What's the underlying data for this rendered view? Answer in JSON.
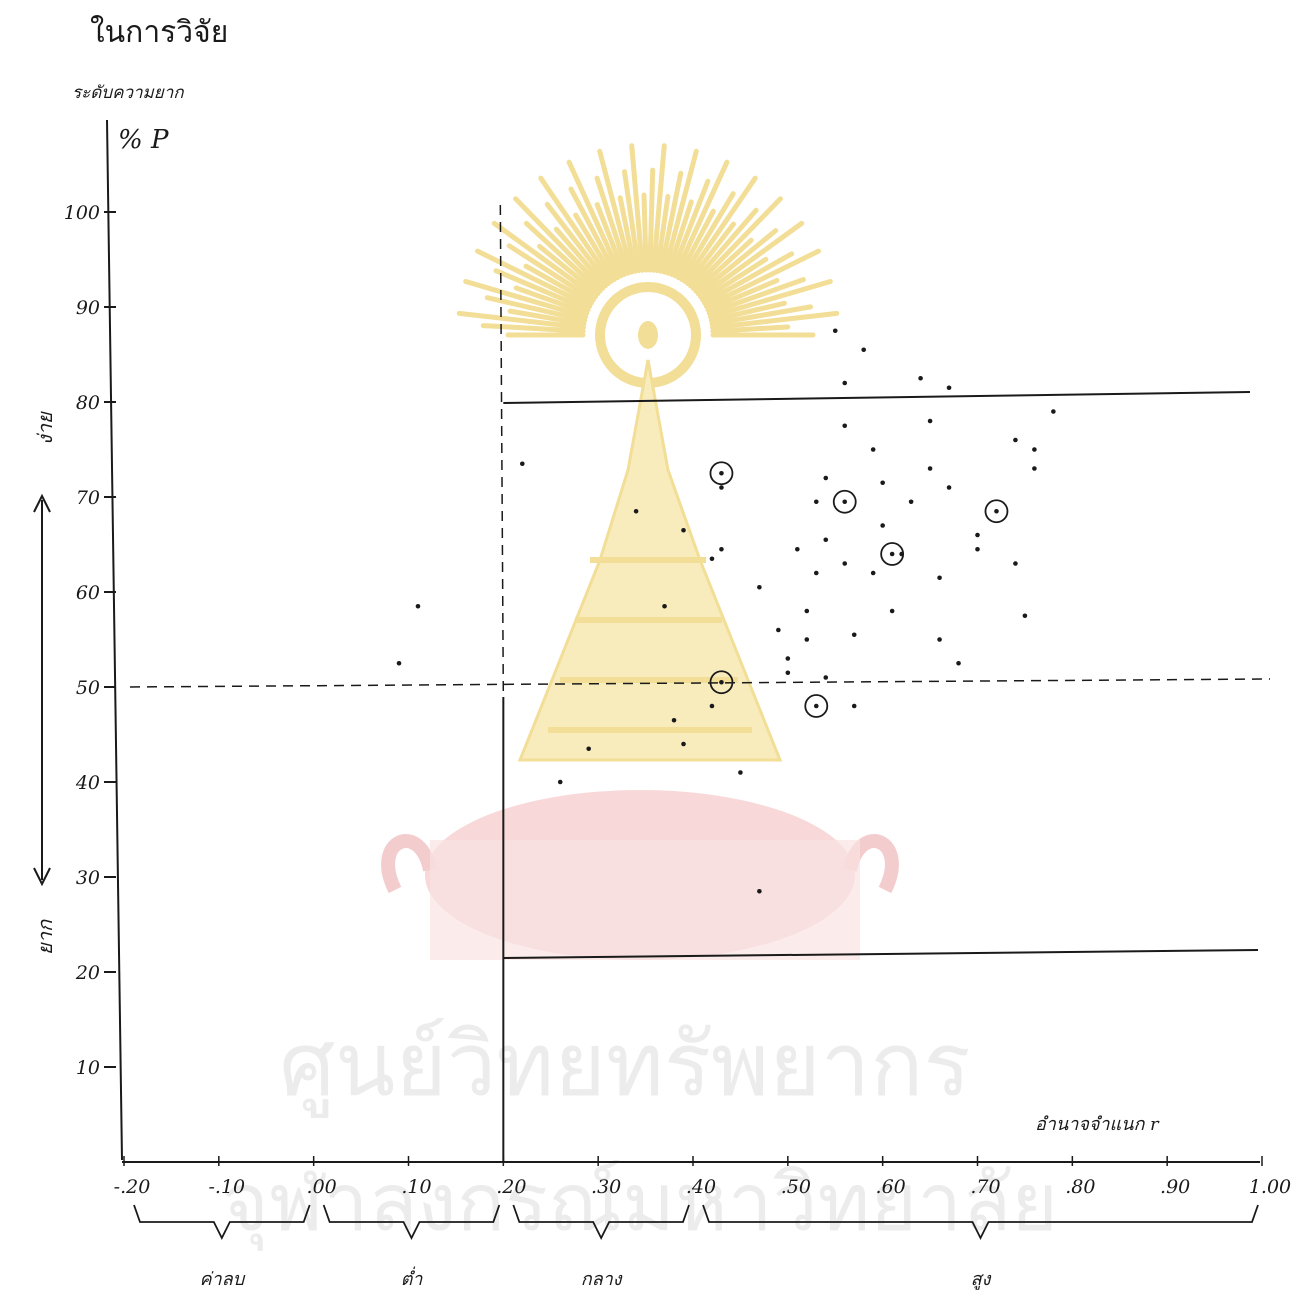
{
  "colors": {
    "ink": "#1a1a1a",
    "paper": "#ffffff",
    "watermark_gold": "#e8c340",
    "watermark_red": "#e9a5a5"
  },
  "chart_data": {
    "type": "scatter",
    "title": "ในการวิจัย",
    "ylabel_line1": "ระดับความยาก",
    "ylabel_line2": "% P",
    "xlabel": "อำนาจจำแนก r",
    "y_easy_label": "ง่าย",
    "y_hard_label": "ยาก",
    "x_ticks": [
      {
        "v": -0.2,
        "t": "-.20"
      },
      {
        "v": -0.1,
        "t": "-.10"
      },
      {
        "v": 0.0,
        "t": ".00"
      },
      {
        "v": 0.1,
        "t": ".10"
      },
      {
        "v": 0.2,
        "t": ".20"
      },
      {
        "v": 0.3,
        "t": ".30"
      },
      {
        "v": 0.4,
        "t": ".40"
      },
      {
        "v": 0.5,
        "t": ".50"
      },
      {
        "v": 0.6,
        "t": ".60"
      },
      {
        "v": 0.7,
        "t": ".70"
      },
      {
        "v": 0.8,
        "t": ".80"
      },
      {
        "v": 0.9,
        "t": ".90"
      },
      {
        "v": 1.0,
        "t": "1.00"
      }
    ],
    "y_ticks": [
      {
        "v": 100,
        "t": "100"
      },
      {
        "v": 90,
        "t": "90"
      },
      {
        "v": 80,
        "t": "80"
      },
      {
        "v": 70,
        "t": "70"
      },
      {
        "v": 60,
        "t": "60"
      },
      {
        "v": 50,
        "t": "50"
      },
      {
        "v": 40,
        "t": "40"
      },
      {
        "v": 30,
        "t": "30"
      },
      {
        "v": 20,
        "t": "20"
      },
      {
        "v": 10,
        "t": "10"
      }
    ],
    "xlim": [
      -0.2,
      1.0
    ],
    "ylim": [
      0,
      100
    ],
    "ref_lines": {
      "vertical_dashed_x": 0.2,
      "horizontal_dashed_y": 50,
      "upper_bound_y": 80,
      "lower_bound_y": 20
    },
    "groups": [
      {
        "label": "ค่าลบ",
        "from": -0.2,
        "to": 0.0
      },
      {
        "label": "ต่ำ",
        "from": 0.0,
        "to": 0.2
      },
      {
        "label": "กลาง",
        "from": 0.2,
        "to": 0.4
      },
      {
        "label": "สูง",
        "from": 0.4,
        "to": 1.0
      }
    ],
    "points": [
      {
        "x": 0.09,
        "y": 52.5
      },
      {
        "x": 0.11,
        "y": 58.5
      },
      {
        "x": 0.22,
        "y": 73.5
      },
      {
        "x": 0.26,
        "y": 40.0
      },
      {
        "x": 0.29,
        "y": 43.5
      },
      {
        "x": 0.34,
        "y": 68.5
      },
      {
        "x": 0.37,
        "y": 58.5
      },
      {
        "x": 0.38,
        "y": 46.5
      },
      {
        "x": 0.39,
        "y": 44.0
      },
      {
        "x": 0.39,
        "y": 66.5
      },
      {
        "x": 0.42,
        "y": 63.5
      },
      {
        "x": 0.42,
        "y": 48.0
      },
      {
        "x": 0.43,
        "y": 71.0
      },
      {
        "x": 0.43,
        "y": 64.5
      },
      {
        "x": 0.45,
        "y": 41.0
      },
      {
        "x": 0.47,
        "y": 28.5
      },
      {
        "x": 0.47,
        "y": 60.5
      },
      {
        "x": 0.49,
        "y": 56.0
      },
      {
        "x": 0.5,
        "y": 53.0
      },
      {
        "x": 0.5,
        "y": 51.5
      },
      {
        "x": 0.51,
        "y": 64.5
      },
      {
        "x": 0.52,
        "y": 58.0
      },
      {
        "x": 0.52,
        "y": 55.0
      },
      {
        "x": 0.53,
        "y": 62.0
      },
      {
        "x": 0.53,
        "y": 69.5
      },
      {
        "x": 0.54,
        "y": 72.0
      },
      {
        "x": 0.54,
        "y": 65.5
      },
      {
        "x": 0.54,
        "y": 51.0
      },
      {
        "x": 0.55,
        "y": 87.5
      },
      {
        "x": 0.56,
        "y": 82.0
      },
      {
        "x": 0.56,
        "y": 77.5
      },
      {
        "x": 0.56,
        "y": 63.0
      },
      {
        "x": 0.57,
        "y": 55.5
      },
      {
        "x": 0.57,
        "y": 48.0
      },
      {
        "x": 0.58,
        "y": 85.5
      },
      {
        "x": 0.59,
        "y": 75.0
      },
      {
        "x": 0.59,
        "y": 62.0
      },
      {
        "x": 0.6,
        "y": 67.0
      },
      {
        "x": 0.6,
        "y": 71.5
      },
      {
        "x": 0.61,
        "y": 58.0
      },
      {
        "x": 0.62,
        "y": 64.0
      },
      {
        "x": 0.63,
        "y": 69.5
      },
      {
        "x": 0.64,
        "y": 82.5
      },
      {
        "x": 0.65,
        "y": 78.0
      },
      {
        "x": 0.65,
        "y": 73.0
      },
      {
        "x": 0.66,
        "y": 55.0
      },
      {
        "x": 0.66,
        "y": 61.5
      },
      {
        "x": 0.67,
        "y": 81.5
      },
      {
        "x": 0.67,
        "y": 71.0
      },
      {
        "x": 0.68,
        "y": 52.5
      },
      {
        "x": 0.7,
        "y": 64.5
      },
      {
        "x": 0.7,
        "y": 66.0
      },
      {
        "x": 0.74,
        "y": 76.0
      },
      {
        "x": 0.74,
        "y": 63.0
      },
      {
        "x": 0.75,
        "y": 57.5
      },
      {
        "x": 0.76,
        "y": 73.0
      },
      {
        "x": 0.76,
        "y": 75.0
      },
      {
        "x": 0.78,
        "y": 79.0
      }
    ],
    "circled_points": [
      {
        "x": 0.43,
        "y": 72.5
      },
      {
        "x": 0.43,
        "y": 50.5
      },
      {
        "x": 0.53,
        "y": 48.0
      },
      {
        "x": 0.56,
        "y": 69.5
      },
      {
        "x": 0.61,
        "y": 64.0
      },
      {
        "x": 0.72,
        "y": 68.5
      }
    ]
  },
  "watermark": {
    "line1": "ศูนย์วิทยทรัพยากร",
    "line2": "จุฬาลงกรณ์มหาวิทยาลัย"
  }
}
